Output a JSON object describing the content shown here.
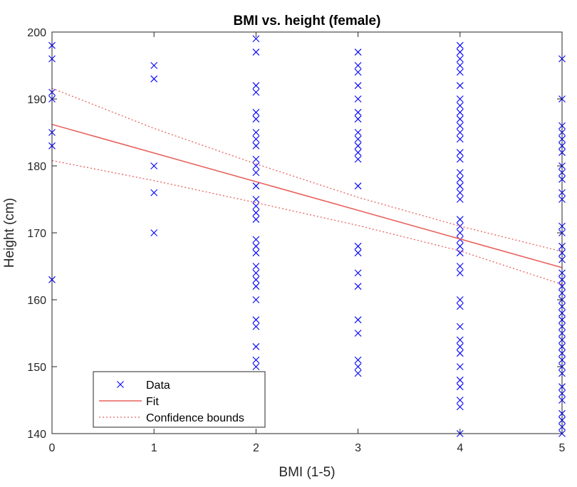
{
  "chart_data": {
    "type": "scatter",
    "title": "BMI vs. height (female)",
    "xlabel": "BMI (1-5)",
    "ylabel": "Height (cm)",
    "xlim": [
      0,
      5
    ],
    "ylim": [
      140,
      200
    ],
    "xticks": [
      "0",
      "1",
      "2",
      "3",
      "4",
      "5"
    ],
    "yticks": [
      "140",
      "150",
      "160",
      "170",
      "180",
      "190",
      "200"
    ],
    "grid": false,
    "legend_position": "bottom-left",
    "colors": {
      "data": "#0000ff",
      "fit": "#e8625e",
      "bounds": "#e8625e"
    },
    "series": [
      {
        "name": "Data",
        "kind": "markers",
        "points": [
          [
            0,
            198
          ],
          [
            0,
            196
          ],
          [
            0,
            191
          ],
          [
            0,
            190
          ],
          [
            0,
            185
          ],
          [
            0,
            183
          ],
          [
            0,
            163
          ],
          [
            1,
            195
          ],
          [
            1,
            193
          ],
          [
            1,
            180
          ],
          [
            1,
            176
          ],
          [
            1,
            170
          ],
          [
            2,
            199
          ],
          [
            2,
            197
          ],
          [
            2,
            192
          ],
          [
            2,
            191
          ],
          [
            2,
            188
          ],
          [
            2,
            187
          ],
          [
            2,
            185
          ],
          [
            2,
            184
          ],
          [
            2,
            183
          ],
          [
            2,
            181
          ],
          [
            2,
            180
          ],
          [
            2,
            179
          ],
          [
            2,
            177
          ],
          [
            2,
            175
          ],
          [
            2,
            174
          ],
          [
            2,
            173
          ],
          [
            2,
            172
          ],
          [
            2,
            169
          ],
          [
            2,
            168
          ],
          [
            2,
            167
          ],
          [
            2,
            165
          ],
          [
            2,
            164
          ],
          [
            2,
            163
          ],
          [
            2,
            162
          ],
          [
            2,
            160
          ],
          [
            2,
            157
          ],
          [
            2,
            156
          ],
          [
            2,
            153
          ],
          [
            2,
            151
          ],
          [
            2,
            150
          ],
          [
            3,
            197
          ],
          [
            3,
            195
          ],
          [
            3,
            194
          ],
          [
            3,
            192
          ],
          [
            3,
            190
          ],
          [
            3,
            188
          ],
          [
            3,
            187
          ],
          [
            3,
            185
          ],
          [
            3,
            184
          ],
          [
            3,
            183
          ],
          [
            3,
            182
          ],
          [
            3,
            181
          ],
          [
            3,
            177
          ],
          [
            3,
            168
          ],
          [
            3,
            167
          ],
          [
            3,
            164
          ],
          [
            3,
            162
          ],
          [
            3,
            157
          ],
          [
            3,
            155
          ],
          [
            3,
            151
          ],
          [
            3,
            150
          ],
          [
            3,
            149
          ],
          [
            4,
            198
          ],
          [
            4,
            197
          ],
          [
            4,
            196
          ],
          [
            4,
            195
          ],
          [
            4,
            194
          ],
          [
            4,
            192
          ],
          [
            4,
            190
          ],
          [
            4,
            189
          ],
          [
            4,
            188
          ],
          [
            4,
            187
          ],
          [
            4,
            186
          ],
          [
            4,
            185
          ],
          [
            4,
            184
          ],
          [
            4,
            182
          ],
          [
            4,
            181
          ],
          [
            4,
            179
          ],
          [
            4,
            178
          ],
          [
            4,
            177
          ],
          [
            4,
            176
          ],
          [
            4,
            175
          ],
          [
            4,
            172
          ],
          [
            4,
            171
          ],
          [
            4,
            170
          ],
          [
            4,
            169
          ],
          [
            4,
            168
          ],
          [
            4,
            167
          ],
          [
            4,
            165
          ],
          [
            4,
            164
          ],
          [
            4,
            160
          ],
          [
            4,
            159
          ],
          [
            4,
            156
          ],
          [
            4,
            154
          ],
          [
            4,
            153
          ],
          [
            4,
            152
          ],
          [
            4,
            150
          ],
          [
            4,
            148
          ],
          [
            4,
            147
          ],
          [
            4,
            145
          ],
          [
            4,
            144
          ],
          [
            4,
            140
          ],
          [
            5,
            196
          ],
          [
            5,
            190
          ],
          [
            5,
            186
          ],
          [
            5,
            185
          ],
          [
            5,
            184
          ],
          [
            5,
            183
          ],
          [
            5,
            182
          ],
          [
            5,
            180
          ],
          [
            5,
            179
          ],
          [
            5,
            178
          ],
          [
            5,
            176
          ],
          [
            5,
            175
          ],
          [
            5,
            171
          ],
          [
            5,
            170
          ],
          [
            5,
            168
          ],
          [
            5,
            167
          ],
          [
            5,
            166
          ],
          [
            5,
            164
          ],
          [
            5,
            163
          ],
          [
            5,
            162
          ],
          [
            5,
            161
          ],
          [
            5,
            160
          ],
          [
            5,
            159
          ],
          [
            5,
            158
          ],
          [
            5,
            157
          ],
          [
            5,
            156
          ],
          [
            5,
            155
          ],
          [
            5,
            154
          ],
          [
            5,
            153
          ],
          [
            5,
            152
          ],
          [
            5,
            151
          ],
          [
            5,
            150
          ],
          [
            5,
            149
          ],
          [
            5,
            147
          ],
          [
            5,
            146
          ],
          [
            5,
            145
          ],
          [
            5,
            143
          ],
          [
            5,
            142
          ],
          [
            5,
            141
          ],
          [
            5,
            140
          ]
        ]
      },
      {
        "name": "Fit",
        "kind": "line",
        "x": [
          0,
          5
        ],
        "y": [
          186.2,
          164.8
        ]
      },
      {
        "name": "Confidence bounds",
        "kind": "dotted",
        "x": [
          0,
          1,
          2,
          3,
          4,
          5
        ],
        "y": [
          191.6,
          185.6,
          180.3,
          175.3,
          171.0,
          167.2
        ]
      },
      {
        "name": "Confidence bounds",
        "kind": "dotted",
        "x": [
          0,
          1,
          2,
          3,
          4,
          5
        ],
        "y": [
          180.8,
          177.8,
          174.5,
          171.1,
          167.3,
          162.3
        ]
      }
    ],
    "legend": [
      "Data",
      "Fit",
      "Confidence bounds"
    ]
  }
}
